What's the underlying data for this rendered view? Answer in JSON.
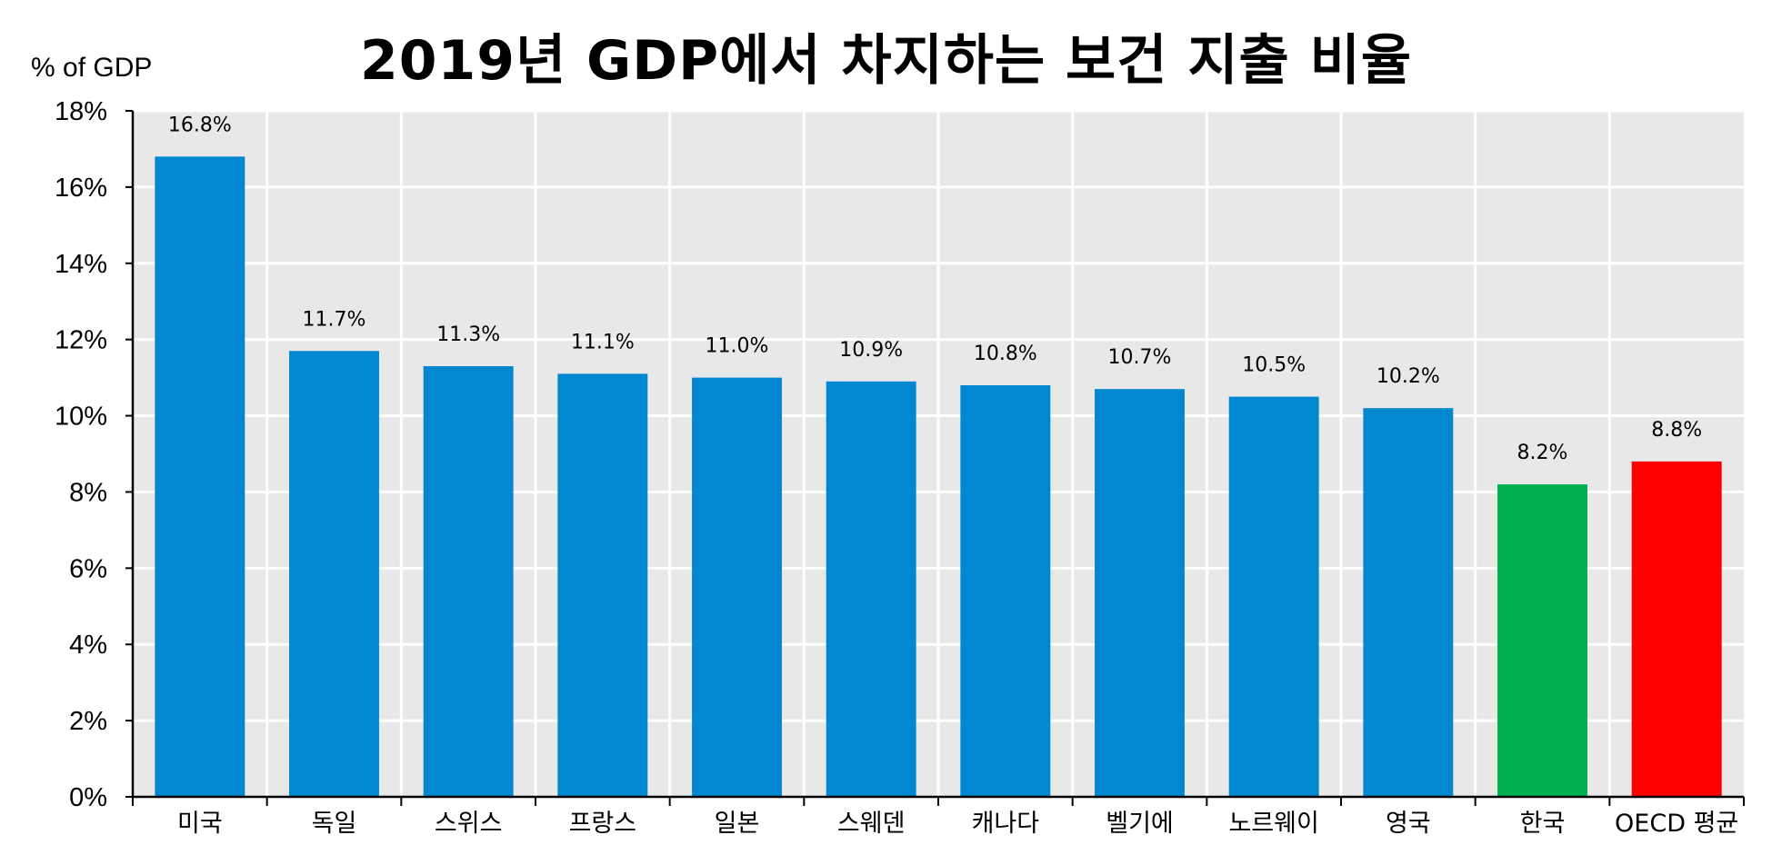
{
  "chart_data": {
    "type": "bar",
    "title": "2019년 GDP에서 차지하는 보건 지출 비율",
    "ylabel": "% of GDP",
    "xlabel": "",
    "ylim": [
      0,
      18
    ],
    "yticks": [
      "0%",
      "2%",
      "4%",
      "6%",
      "8%",
      "10%",
      "12%",
      "14%",
      "16%",
      "18%"
    ],
    "grid": true,
    "categories": [
      "미국",
      "독일",
      "스위스",
      "프랑스",
      "일본",
      "스웨덴",
      "캐나다",
      "벨기에",
      "노르웨이",
      "영국",
      "한국",
      "OECD 평균"
    ],
    "values": [
      16.8,
      11.7,
      11.3,
      11.1,
      11.0,
      10.9,
      10.8,
      10.7,
      10.5,
      10.2,
      8.2,
      8.8
    ],
    "data_labels": [
      "16.8%",
      "11.7%",
      "11.3%",
      "11.1%",
      "11.0%",
      "10.9%",
      "10.8%",
      "10.7%",
      "10.5%",
      "10.2%",
      "8.2%",
      "8.8%"
    ],
    "colors": [
      "#0288D1",
      "#0288D1",
      "#0288D1",
      "#0288D1",
      "#0288D1",
      "#0288D1",
      "#0288D1",
      "#0288D1",
      "#0288D1",
      "#0288D1",
      "#00B050",
      "#FF0000"
    ],
    "background": "#E8E8E8",
    "gridline_color": "#FFFFFF"
  }
}
